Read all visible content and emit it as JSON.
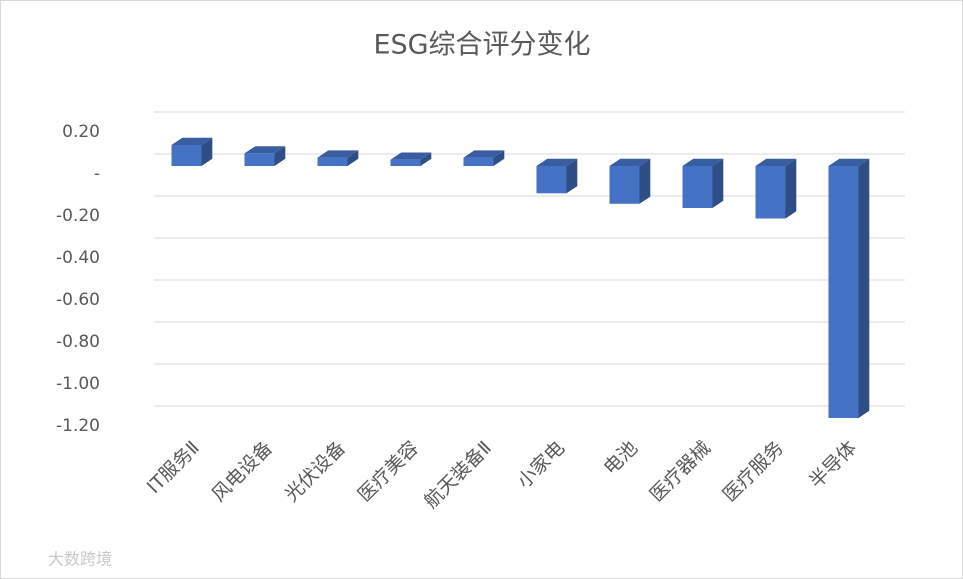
{
  "chart_data": {
    "type": "bar3d",
    "title": "ESG综合评分变化",
    "categories": [
      "IT服务Ⅱ",
      "风电设备",
      "光伏设备",
      "医疗美容",
      "航天装备Ⅱ",
      "小家电",
      "电池",
      "医疗器械",
      "医疗服务",
      "半导体"
    ],
    "values": [
      0.1,
      0.06,
      0.04,
      0.03,
      0.04,
      -0.13,
      -0.18,
      -0.2,
      -0.25,
      -1.2
    ],
    "color": "#4472c4",
    "ylim": [
      -1.2,
      0.2
    ],
    "yticks": [
      {
        "value": 0.2,
        "label": "0.20"
      },
      {
        "value": 0,
        "label": "-"
      },
      {
        "value": -0.2,
        "label": "-0.20"
      },
      {
        "value": -0.4,
        "label": "-0.40"
      },
      {
        "value": -0.6,
        "label": "-0.60"
      },
      {
        "value": -0.8,
        "label": "-0.80"
      },
      {
        "value": -1.0,
        "label": "-1.00"
      },
      {
        "value": -1.2,
        "label": "-1.20"
      }
    ],
    "grid": true,
    "watermark": "大数跨境"
  }
}
